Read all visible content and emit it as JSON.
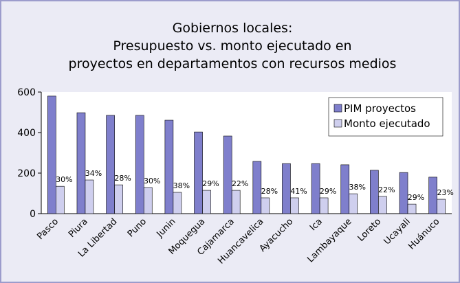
{
  "chart_data": {
    "type": "bar",
    "title": [
      "Gobiernos locales:",
      "Presupuesto vs. monto ejecutado en",
      "proyectos en departamentos con recursos medios"
    ],
    "categories": [
      "Pasco",
      "Piura",
      "La Libertad",
      "Puno",
      "Junin",
      "Moquegua",
      "Cajamarca",
      "Huancavelica",
      "Ayacucho",
      "Ica",
      "Lambayaque",
      "Loreto",
      "Ucayali",
      "Huánuco"
    ],
    "series": [
      {
        "name": "PIM proyectos",
        "color": "#7f7fcc",
        "values": [
          580,
          498,
          485,
          485,
          461,
          403,
          383,
          258,
          247,
          247,
          241,
          214,
          203,
          180
        ]
      },
      {
        "name": "Monto ejecutado",
        "color": "#cfcfee",
        "values": [
          135,
          166,
          142,
          129,
          105,
          115,
          115,
          78,
          78,
          78,
          98,
          85,
          47,
          71
        ]
      }
    ],
    "annotations": [
      "30%",
      "34%",
      "28%",
      "30%",
      "38%",
      "29%",
      "22%",
      "28%",
      "41%",
      "29%",
      "38%",
      "22%",
      "29%",
      "23%"
    ],
    "ylim": [
      0,
      600
    ],
    "yticks": [
      0,
      200,
      400,
      600
    ],
    "legend": "upper right"
  }
}
